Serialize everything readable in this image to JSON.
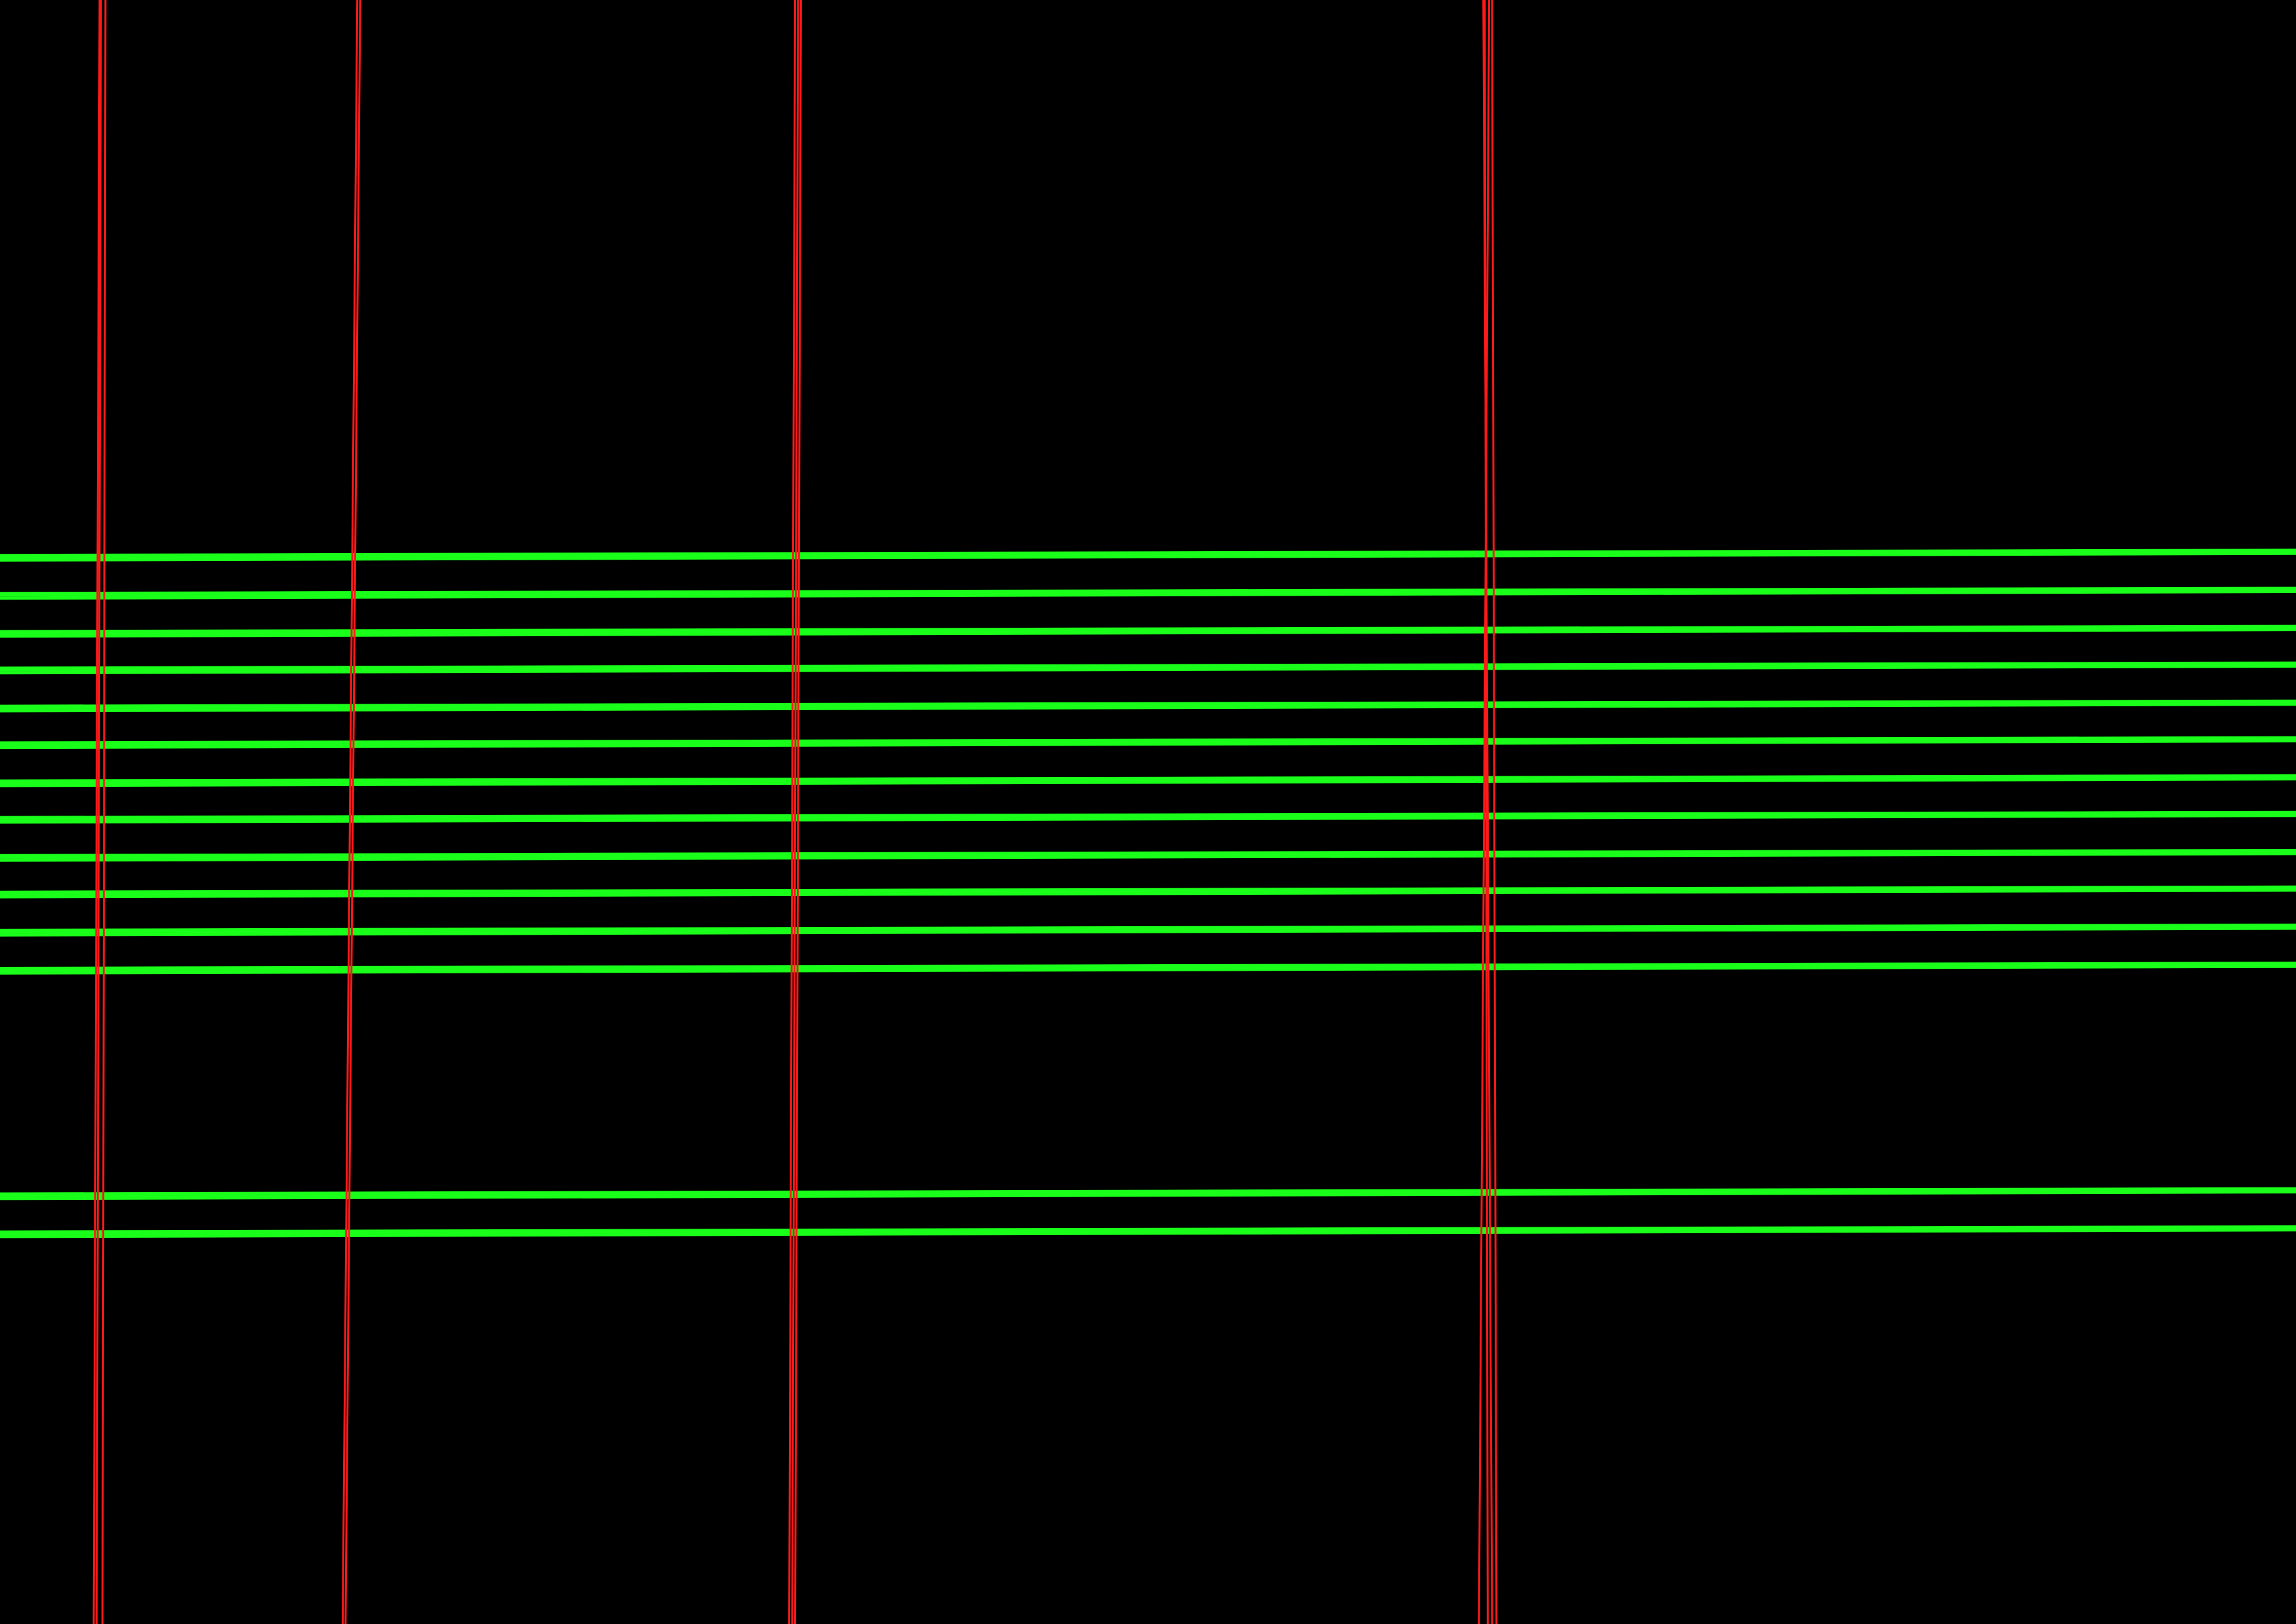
{
  "colors": {
    "background": "#000000",
    "horizontal_lines": "#1aff1a",
    "vertical_lines": "#ff1a1a"
  },
  "horizontal_line_groups": 14,
  "vertical_line_groups": 4
}
